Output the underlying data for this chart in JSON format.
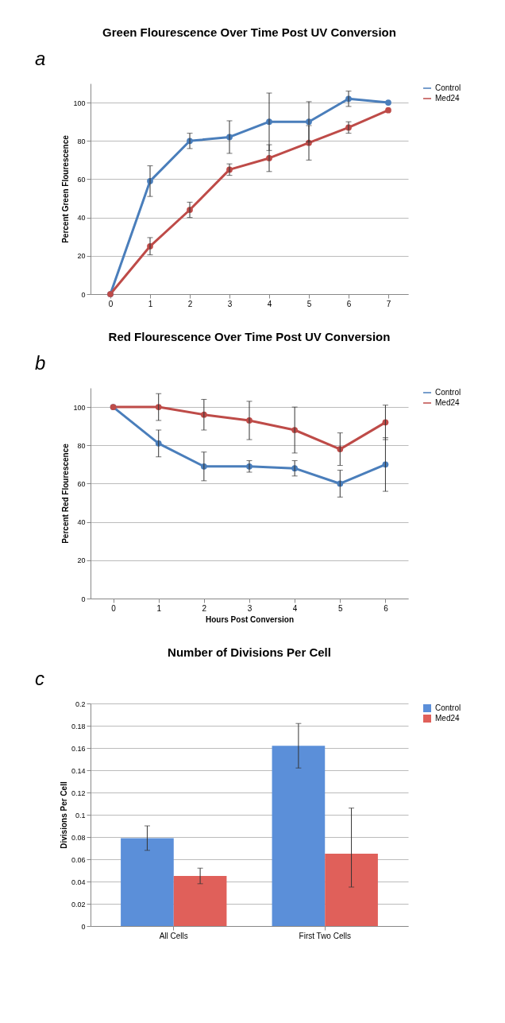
{
  "chart_data": [
    {
      "type": "line",
      "title": "Green Flourescence Over Time Post UV Conversion",
      "ylabel": "Percent Green Flourescence",
      "annotations": [
        "a"
      ],
      "categories": [
        "0",
        "1",
        "2",
        "3",
        "4",
        "5",
        "6",
        "7"
      ],
      "ylim": [
        0,
        110
      ],
      "yticks": [
        0,
        20,
        40,
        60,
        80,
        100
      ],
      "grid": "y",
      "legend": "right",
      "marker": "circle",
      "series": [
        {
          "name": "Control",
          "color": "#4a7ebb",
          "values": [
            0,
            59,
            80,
            82,
            90,
            90,
            102,
            100
          ],
          "errors": [
            null,
            8,
            4,
            8.5,
            15,
            10.5,
            4,
            null
          ]
        },
        {
          "name": "Med24",
          "color": "#be4b48",
          "values": [
            0,
            25,
            44,
            65,
            71,
            79,
            87,
            96
          ],
          "errors": [
            null,
            4.5,
            4,
            3,
            7,
            9,
            3,
            null
          ]
        }
      ]
    },
    {
      "type": "line",
      "title": "Red Flourescence Over Time Post UV Conversion",
      "xlabel": "Hours Post Conversion",
      "ylabel": "Percent Red Flourescence",
      "annotations": [
        "b"
      ],
      "categories": [
        "0",
        "1",
        "2",
        "3",
        "4",
        "5",
        "6"
      ],
      "ylim": [
        0,
        110
      ],
      "yticks": [
        0,
        20,
        40,
        60,
        80,
        100
      ],
      "grid": "y",
      "legend": "right",
      "marker": "circle",
      "series": [
        {
          "name": "Control",
          "color": "#4a7ebb",
          "values": [
            100,
            81,
            69,
            69,
            68,
            60,
            70
          ],
          "errors": [
            null,
            7,
            7.5,
            3,
            4,
            7,
            14
          ]
        },
        {
          "name": "Med24",
          "color": "#be4b48",
          "values": [
            100,
            100,
            96,
            93,
            88,
            78,
            92
          ],
          "errors": [
            null,
            7,
            8,
            10,
            12,
            8.5,
            9
          ]
        }
      ]
    },
    {
      "type": "bar",
      "title": "Number of Divisions Per Cell",
      "ylabel": "Divisions Per Cell",
      "annotations": [
        "c"
      ],
      "categories": [
        "All Cells",
        "First Two Cells"
      ],
      "ylim": [
        0,
        0.2
      ],
      "yticks": [
        0,
        0.02,
        0.04,
        0.06,
        0.08,
        0.1,
        0.12,
        0.14,
        0.16,
        0.18,
        0.2
      ],
      "grid": "y",
      "legend": "right",
      "series": [
        {
          "name": "Control",
          "color": "#5b8fd9",
          "values": [
            0.079,
            0.162
          ],
          "errors": [
            0.011,
            0.02
          ]
        },
        {
          "name": "Med24",
          "color": "#e0605a",
          "values": [
            0.045,
            0.065
          ],
          "errors": [
            0.007,
            [
              0.035,
              0.106
            ]
          ]
        }
      ]
    }
  ]
}
